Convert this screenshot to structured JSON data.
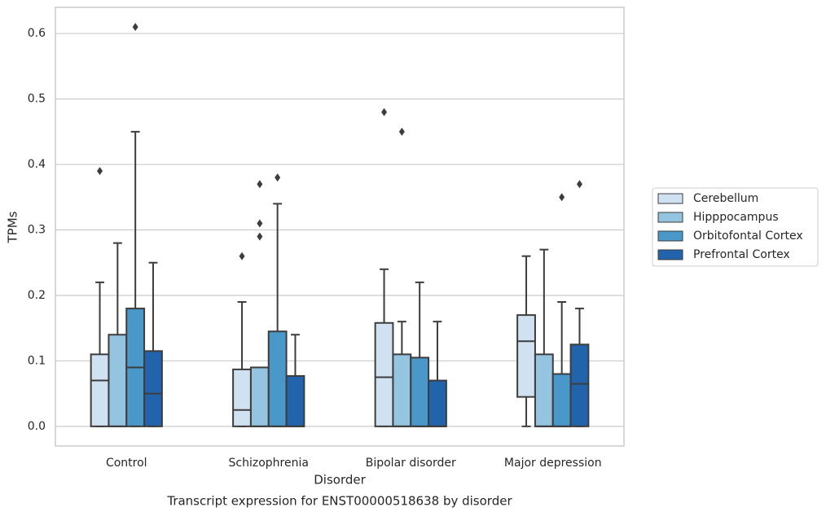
{
  "chart_data": {
    "type": "box",
    "title": "Transcript expression for ENST00000518638 by disorder",
    "xlabel": "Disorder",
    "ylabel": "TPMs",
    "categories": [
      "Control",
      "Schizophrenia",
      "Bipolar disorder",
      "Major depression"
    ],
    "ylim": [
      -0.03,
      0.64
    ],
    "yticks": [
      {
        "value": 0,
        "label": "0.0"
      },
      0.1,
      0.2,
      0.3,
      0.4,
      0.5,
      0.6
    ],
    "grid": true,
    "legend": "right",
    "series": [
      {
        "name": "Cerebellum",
        "color": "#d0e1f2",
        "boxes": [
          {
            "min": 0,
            "q1": 0,
            "median": 0.07,
            "q3": 0.11,
            "max": 0.22,
            "outliers": [
              0.39
            ]
          },
          {
            "min": 0,
            "q1": 0,
            "median": 0.025,
            "q3": 0.087,
            "max": 0.19,
            "outliers": [
              0.26
            ]
          },
          {
            "min": 0,
            "q1": 0,
            "median": 0.075,
            "q3": 0.158,
            "max": 0.24,
            "outliers": [
              0.48
            ]
          },
          {
            "min": 0,
            "q1": 0.045,
            "median": 0.13,
            "q3": 0.17,
            "max": 0.26,
            "outliers": []
          }
        ]
      },
      {
        "name": "Hipppocampus",
        "color": "#94c4df",
        "boxes": [
          {
            "min": 0,
            "q1": 0,
            "median": 0,
            "q3": 0.14,
            "max": 0.28,
            "outliers": []
          },
          {
            "min": 0,
            "q1": 0,
            "median": 0,
            "q3": 0.09,
            "max": 0.09,
            "outliers": [
              0.29,
              0.31,
              0.37
            ]
          },
          {
            "min": 0,
            "q1": 0,
            "median": 0,
            "q3": 0.11,
            "max": 0.16,
            "outliers": [
              0.45
            ]
          },
          {
            "min": 0,
            "q1": 0,
            "median": 0,
            "q3": 0.11,
            "max": 0.27,
            "outliers": []
          }
        ]
      },
      {
        "name": "Orbitofontal Cortex",
        "color": "#4a98c9",
        "boxes": [
          {
            "min": 0,
            "q1": 0,
            "median": 0.09,
            "q3": 0.18,
            "max": 0.45,
            "outliers": [
              0.61
            ]
          },
          {
            "min": 0,
            "q1": 0,
            "median": 0,
            "q3": 0.145,
            "max": 0.34,
            "outliers": [
              0.38
            ]
          },
          {
            "min": 0,
            "q1": 0,
            "median": 0,
            "q3": 0.105,
            "max": 0.22,
            "outliers": []
          },
          {
            "min": 0,
            "q1": 0,
            "median": 0,
            "q3": 0.08,
            "max": 0.19,
            "outliers": [
              0.35
            ]
          }
        ]
      },
      {
        "name": "Prefrontal Cortex",
        "color": "#2164ab",
        "boxes": [
          {
            "min": 0,
            "q1": 0,
            "median": 0.05,
            "q3": 0.115,
            "max": 0.25,
            "outliers": []
          },
          {
            "min": 0,
            "q1": 0,
            "median": 0,
            "q3": 0.077,
            "max": 0.14,
            "outliers": []
          },
          {
            "min": 0,
            "q1": 0,
            "median": 0,
            "q3": 0.07,
            "max": 0.16,
            "outliers": []
          },
          {
            "min": 0,
            "q1": 0,
            "median": 0.065,
            "q3": 0.125,
            "max": 0.18,
            "outliers": [
              0.37
            ]
          }
        ]
      }
    ]
  }
}
